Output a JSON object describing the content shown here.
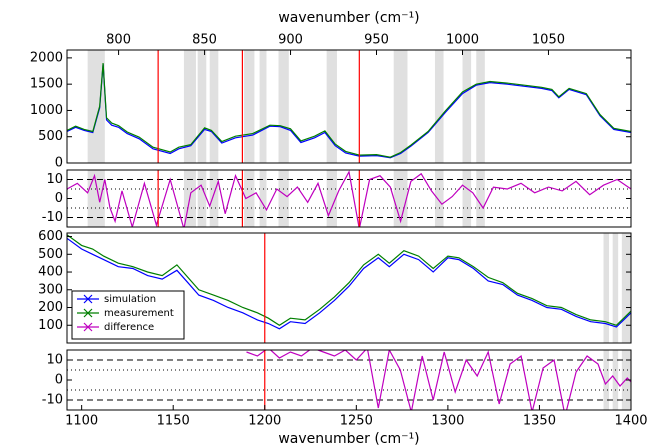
{
  "chart_data": [
    {
      "type": "line",
      "xaxis": "top",
      "xlabel": "wavenumber (cm⁻¹)",
      "xlim": [
        770,
        1098
      ],
      "xticks": [
        800,
        850,
        900,
        950,
        1000,
        1050
      ],
      "ylim": [
        0,
        2150
      ],
      "yticks": [
        0,
        500,
        1000,
        1500,
        2000
      ],
      "bands": [
        [
          782,
          792
        ],
        [
          838,
          845
        ],
        [
          846,
          851
        ],
        [
          853,
          858
        ],
        [
          873,
          879
        ],
        [
          882,
          886
        ],
        [
          893,
          899
        ],
        [
          921,
          927
        ],
        [
          960,
          968
        ],
        [
          984,
          989
        ],
        [
          1000,
          1005
        ],
        [
          1008,
          1013
        ]
      ],
      "vlines": [
        823,
        872,
        940
      ],
      "vline_color": "#ff0000",
      "x": [
        770,
        775,
        780,
        785,
        789,
        791,
        793,
        796,
        800,
        805,
        812,
        820,
        830,
        835,
        842,
        850,
        854,
        860,
        868,
        878,
        888,
        894,
        900,
        906,
        914,
        920,
        926,
        932,
        940,
        950,
        958,
        964,
        970,
        980,
        990,
        1000,
        1008,
        1016,
        1026,
        1036,
        1046,
        1052,
        1056,
        1062,
        1072,
        1080,
        1088,
        1098
      ],
      "series": [
        {
          "color": "#0000ff",
          "values": [
            600,
            680,
            620,
            580,
            1050,
            1880,
            820,
            720,
            680,
            560,
            460,
            270,
            180,
            270,
            330,
            640,
            600,
            380,
            480,
            530,
            700,
            690,
            620,
            390,
            480,
            580,
            330,
            190,
            130,
            140,
            100,
            180,
            320,
            580,
            960,
            1320,
            1480,
            1530,
            1500,
            1460,
            1420,
            1380,
            1240,
            1400,
            1300,
            900,
            640,
            580
          ]
        },
        {
          "color": "#007f00",
          "values": [
            620,
            700,
            640,
            600,
            1080,
            1900,
            860,
            760,
            710,
            590,
            490,
            300,
            210,
            300,
            350,
            670,
            620,
            410,
            510,
            560,
            720,
            710,
            650,
            420,
            510,
            610,
            360,
            220,
            150,
            160,
            110,
            200,
            340,
            600,
            990,
            1350,
            1500,
            1550,
            1520,
            1480,
            1440,
            1400,
            1260,
            1420,
            1320,
            920,
            660,
            600
          ]
        }
      ]
    },
    {
      "type": "line",
      "xlim": [
        770,
        1098
      ],
      "ylim": [
        -15,
        15
      ],
      "yticks": [
        -10,
        0,
        10
      ],
      "hlines_dashed": [
        -10,
        10
      ],
      "hlines_dotted": [
        -5,
        5
      ],
      "bands": [
        [
          782,
          792
        ],
        [
          838,
          845
        ],
        [
          846,
          851
        ],
        [
          853,
          858
        ],
        [
          873,
          879
        ],
        [
          882,
          886
        ],
        [
          893,
          899
        ],
        [
          921,
          927
        ],
        [
          960,
          968
        ],
        [
          984,
          989
        ],
        [
          1000,
          1005
        ],
        [
          1008,
          1013
        ]
      ],
      "vlines": [
        823,
        872,
        940
      ],
      "vline_color": "#ff0000",
      "x": [
        770,
        776,
        782,
        786,
        789,
        792,
        795,
        798,
        802,
        808,
        815,
        822,
        830,
        838,
        842,
        848,
        853,
        858,
        862,
        868,
        874,
        880,
        886,
        892,
        898,
        904,
        910,
        916,
        922,
        928,
        934,
        940,
        946,
        952,
        958,
        964,
        970,
        976,
        982,
        988,
        994,
        1000,
        1006,
        1012,
        1018,
        1026,
        1034,
        1042,
        1050,
        1058,
        1066,
        1074,
        1082,
        1090,
        1098
      ],
      "series": [
        {
          "color": "#bf00bf",
          "values": [
            5,
            8,
            3,
            12,
            -2,
            10,
            -5,
            -12,
            4,
            -15,
            8,
            -14,
            10,
            -16,
            3,
            7,
            -4,
            9,
            -8,
            12,
            0,
            3,
            -6,
            5,
            1,
            6,
            -2,
            8,
            -9,
            4,
            14,
            -16,
            10,
            12,
            6,
            -12,
            9,
            13,
            4,
            -3,
            1,
            7,
            3,
            -5,
            6,
            5,
            8,
            3,
            6,
            4,
            9,
            2,
            7,
            10,
            5
          ]
        }
      ]
    },
    {
      "type": "line",
      "xlim": [
        1092,
        1400
      ],
      "ylim": [
        0,
        620
      ],
      "yticks": [
        100,
        200,
        300,
        400,
        500,
        600
      ],
      "bands": [
        [
          1385,
          1388
        ],
        [
          1390,
          1393
        ],
        [
          1395,
          1400
        ]
      ],
      "vlines": [
        1200
      ],
      "vline_color": "#ff0000",
      "legend": "lower left",
      "x": [
        1092,
        1100,
        1106,
        1112,
        1120,
        1128,
        1136,
        1144,
        1152,
        1158,
        1164,
        1172,
        1180,
        1188,
        1196,
        1202,
        1208,
        1214,
        1222,
        1230,
        1238,
        1246,
        1254,
        1262,
        1268,
        1276,
        1284,
        1292,
        1300,
        1306,
        1314,
        1322,
        1330,
        1338,
        1346,
        1354,
        1362,
        1370,
        1378,
        1386,
        1392,
        1396,
        1400
      ],
      "series": [
        {
          "name": "simulation",
          "color": "#0000ff",
          "values": [
            590,
            530,
            500,
            470,
            430,
            420,
            380,
            360,
            410,
            340,
            270,
            240,
            200,
            170,
            130,
            110,
            80,
            120,
            110,
            170,
            240,
            320,
            420,
            480,
            430,
            500,
            470,
            400,
            480,
            470,
            420,
            350,
            330,
            270,
            240,
            200,
            190,
            150,
            120,
            110,
            90,
            130,
            170
          ]
        },
        {
          "name": "measurement",
          "color": "#007f00",
          "values": [
            610,
            550,
            530,
            490,
            450,
            430,
            400,
            380,
            440,
            370,
            300,
            270,
            240,
            200,
            170,
            140,
            100,
            140,
            130,
            190,
            260,
            340,
            440,
            500,
            450,
            520,
            490,
            420,
            490,
            480,
            430,
            370,
            340,
            280,
            250,
            210,
            200,
            160,
            130,
            120,
            100,
            140,
            180
          ]
        }
      ]
    },
    {
      "type": "line",
      "xaxis": "bottom",
      "xlabel": "wavenumber (cm⁻¹)",
      "xlim": [
        1092,
        1400
      ],
      "xticks": [
        1100,
        1150,
        1200,
        1250,
        1300,
        1350,
        1400
      ],
      "ylim": [
        -15,
        15
      ],
      "yticks": [
        -10,
        0,
        10
      ],
      "hlines_dashed": [
        -10,
        10
      ],
      "hlines_dotted": [
        -5,
        5
      ],
      "bands": [
        [
          1385,
          1388
        ],
        [
          1390,
          1393
        ],
        [
          1395,
          1400
        ]
      ],
      "vlines": [
        1200
      ],
      "vline_color": "#ff0000",
      "x": [
        1190,
        1196,
        1202,
        1208,
        1214,
        1220,
        1226,
        1232,
        1238,
        1244,
        1250,
        1256,
        1262,
        1268,
        1274,
        1280,
        1286,
        1292,
        1298,
        1304,
        1310,
        1316,
        1322,
        1328,
        1334,
        1340,
        1346,
        1352,
        1358,
        1364,
        1370,
        1376,
        1382,
        1386,
        1390,
        1394,
        1398,
        1400
      ],
      "series": [
        {
          "name": "difference",
          "color": "#bf00bf",
          "values": [
            14,
            12,
            16,
            11,
            14,
            12,
            16,
            14,
            12,
            15,
            10,
            16,
            -14,
            15,
            5,
            -16,
            12,
            -10,
            14,
            -6,
            10,
            2,
            14,
            -12,
            8,
            12,
            -16,
            6,
            10,
            -18,
            4,
            12,
            8,
            -2,
            2,
            -3,
            1,
            -1
          ]
        }
      ]
    }
  ]
}
